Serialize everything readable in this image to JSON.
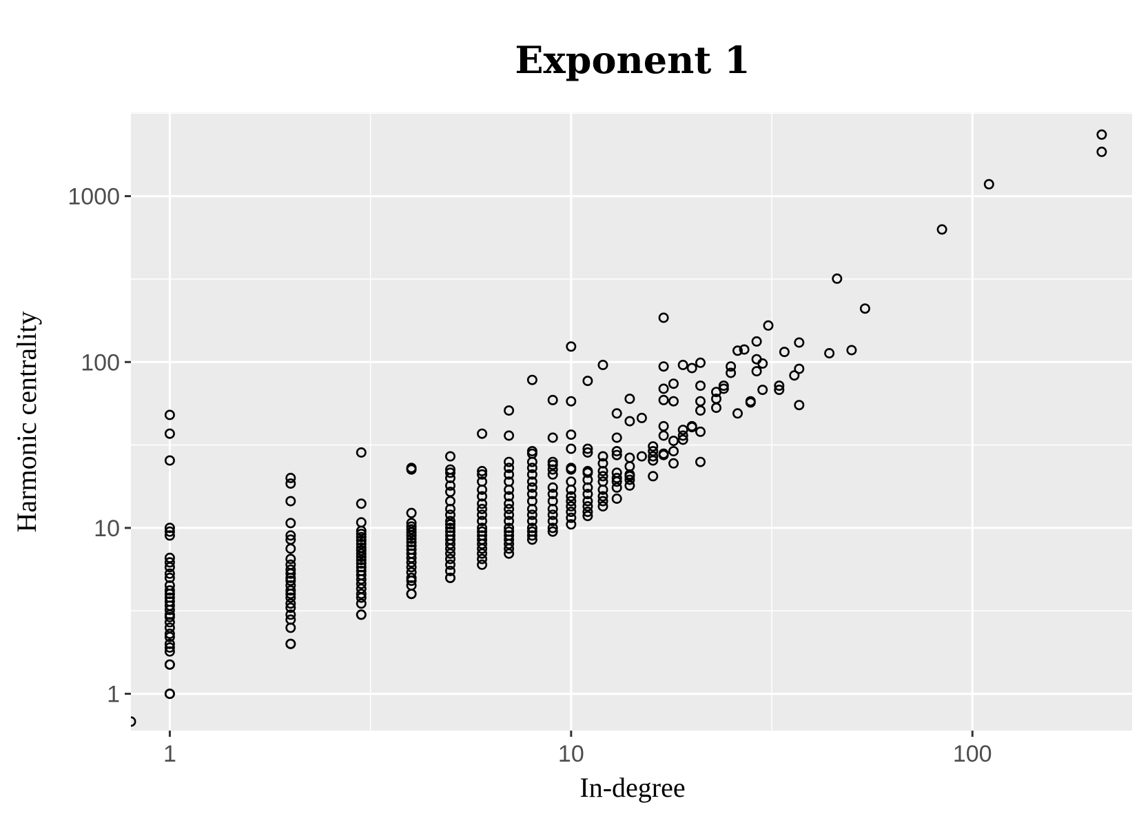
{
  "chart_data": {
    "type": "scatter",
    "title": "Exponent 1",
    "xlabel": "In-degree",
    "ylabel": "Harmonic centrality",
    "x_scale": "log10",
    "y_scale": "log10",
    "xlim": [
      0.8,
      250
    ],
    "ylim": [
      0.6,
      3200
    ],
    "x_ticks": [
      1,
      10,
      100
    ],
    "x_tick_labels": [
      "1",
      "10",
      "100"
    ],
    "y_ticks": [
      1,
      10,
      100,
      1000
    ],
    "y_tick_labels": [
      "1",
      "10",
      "100",
      "1000"
    ],
    "grid": true,
    "panel_color": "#ebebeb",
    "point_color": "#000000",
    "marker": "open-circle",
    "points": [
      [
        0.8,
        0.68
      ],
      [
        1,
        1
      ],
      [
        1,
        1
      ],
      [
        1,
        1.5
      ],
      [
        1,
        1.5
      ],
      [
        1,
        1.8
      ],
      [
        1,
        1.9
      ],
      [
        1,
        2.0
      ],
      [
        1,
        2.2
      ],
      [
        1,
        2.3
      ],
      [
        1,
        2.5
      ],
      [
        1,
        2.7
      ],
      [
        1,
        2.9
      ],
      [
        1,
        3.0
      ],
      [
        1,
        3.2
      ],
      [
        1,
        3.4
      ],
      [
        1,
        3.6
      ],
      [
        1,
        3.8
      ],
      [
        1,
        4.0
      ],
      [
        1,
        4.2
      ],
      [
        1,
        4.5
      ],
      [
        1,
        5.0
      ],
      [
        1,
        5.3
      ],
      [
        1,
        5.8
      ],
      [
        1,
        6.2
      ],
      [
        1,
        6.6
      ],
      [
        1,
        9.0
      ],
      [
        1,
        9.5
      ],
      [
        1,
        10.0
      ],
      [
        1,
        25.5
      ],
      [
        1,
        37
      ],
      [
        1,
        48
      ],
      [
        2,
        2
      ],
      [
        2,
        2
      ],
      [
        2,
        2.5
      ],
      [
        2,
        2.8
      ],
      [
        2,
        3.0
      ],
      [
        2,
        3.3
      ],
      [
        2,
        3.5
      ],
      [
        2,
        3.8
      ],
      [
        2,
        4.0
      ],
      [
        2,
        4.2
      ],
      [
        2,
        4.5
      ],
      [
        2,
        4.8
      ],
      [
        2,
        5.0
      ],
      [
        2,
        5.3
      ],
      [
        2,
        5.6
      ],
      [
        2,
        6.0
      ],
      [
        2,
        6.5
      ],
      [
        2,
        7.5
      ],
      [
        2,
        8.5
      ],
      [
        2,
        9.0
      ],
      [
        2,
        10.7
      ],
      [
        2,
        14.5
      ],
      [
        2,
        18.5
      ],
      [
        2,
        20
      ],
      [
        3,
        3
      ],
      [
        3,
        3
      ],
      [
        3,
        3.5
      ],
      [
        3,
        3.8
      ],
      [
        3,
        4.0
      ],
      [
        3,
        4.3
      ],
      [
        3,
        4.6
      ],
      [
        3,
        4.9
      ],
      [
        3,
        5.2
      ],
      [
        3,
        5.5
      ],
      [
        3,
        5.8
      ],
      [
        3,
        6.1
      ],
      [
        3,
        6.4
      ],
      [
        3,
        6.7
      ],
      [
        3,
        7.0
      ],
      [
        3,
        7.3
      ],
      [
        3,
        7.6
      ],
      [
        3,
        8.0
      ],
      [
        3,
        8.4
      ],
      [
        3,
        8.8
      ],
      [
        3,
        9.2
      ],
      [
        3,
        9.6
      ],
      [
        3,
        10.8
      ],
      [
        3,
        14
      ],
      [
        3,
        28.5
      ],
      [
        4,
        4
      ],
      [
        4,
        4
      ],
      [
        4,
        4.5
      ],
      [
        4,
        4.8
      ],
      [
        4,
        5.0
      ],
      [
        4,
        5.4
      ],
      [
        4,
        5.8
      ],
      [
        4,
        6.2
      ],
      [
        4,
        6.6
      ],
      [
        4,
        7.0
      ],
      [
        4,
        7.4
      ],
      [
        4,
        7.8
      ],
      [
        4,
        8.2
      ],
      [
        4,
        8.6
      ],
      [
        4,
        9.0
      ],
      [
        4,
        9.4
      ],
      [
        4,
        9.8
      ],
      [
        4,
        10.2
      ],
      [
        4,
        10.7
      ],
      [
        4,
        12.3
      ],
      [
        4,
        22.5
      ],
      [
        4,
        23
      ],
      [
        5,
        5
      ],
      [
        5,
        5
      ],
      [
        5,
        5.5
      ],
      [
        5,
        6.0
      ],
      [
        5,
        6.5
      ],
      [
        5,
        7.0
      ],
      [
        5,
        7.5
      ],
      [
        5,
        8.0
      ],
      [
        5,
        8.5
      ],
      [
        5,
        9.0
      ],
      [
        5,
        9.5
      ],
      [
        5,
        10.0
      ],
      [
        5,
        10.5
      ],
      [
        5,
        11
      ],
      [
        5,
        12
      ],
      [
        5,
        13
      ],
      [
        5,
        14.5
      ],
      [
        5,
        16.5
      ],
      [
        5,
        18
      ],
      [
        5,
        20
      ],
      [
        5,
        21.5
      ],
      [
        5,
        22.5
      ],
      [
        5,
        27
      ],
      [
        6,
        6
      ],
      [
        6,
        6.5
      ],
      [
        6,
        7
      ],
      [
        6,
        7.5
      ],
      [
        6,
        8
      ],
      [
        6,
        8.5
      ],
      [
        6,
        9
      ],
      [
        6,
        9.5
      ],
      [
        6,
        10
      ],
      [
        6,
        11
      ],
      [
        6,
        12
      ],
      [
        6,
        13
      ],
      [
        6,
        14
      ],
      [
        6,
        15.5
      ],
      [
        6,
        17
      ],
      [
        6,
        19
      ],
      [
        6,
        21
      ],
      [
        6,
        22
      ],
      [
        6,
        37
      ],
      [
        7,
        7
      ],
      [
        7,
        7.5
      ],
      [
        7,
        8
      ],
      [
        7,
        8.5
      ],
      [
        7,
        9
      ],
      [
        7,
        9.5
      ],
      [
        7,
        10
      ],
      [
        7,
        11
      ],
      [
        7,
        12
      ],
      [
        7,
        13
      ],
      [
        7,
        14
      ],
      [
        7,
        15.5
      ],
      [
        7,
        17
      ],
      [
        7,
        19
      ],
      [
        7,
        21
      ],
      [
        7,
        23
      ],
      [
        7,
        25
      ],
      [
        7,
        36
      ],
      [
        7,
        51
      ],
      [
        8,
        8.5
      ],
      [
        8,
        9
      ],
      [
        8,
        9.5
      ],
      [
        8,
        10
      ],
      [
        8,
        11
      ],
      [
        8,
        12
      ],
      [
        8,
        13
      ],
      [
        8,
        14.5
      ],
      [
        8,
        16
      ],
      [
        8,
        17.5
      ],
      [
        8,
        19
      ],
      [
        8,
        21
      ],
      [
        8,
        23
      ],
      [
        8,
        25
      ],
      [
        8,
        28
      ],
      [
        8,
        29
      ],
      [
        8,
        78
      ],
      [
        9,
        9.5
      ],
      [
        9,
        10
      ],
      [
        9,
        11
      ],
      [
        9,
        12
      ],
      [
        9,
        13
      ],
      [
        9,
        14.5
      ],
      [
        9,
        16
      ],
      [
        9,
        17.5
      ],
      [
        9,
        21
      ],
      [
        9,
        22.5
      ],
      [
        9,
        24
      ],
      [
        9,
        25
      ],
      [
        9,
        35
      ],
      [
        9,
        59
      ],
      [
        10,
        10.5
      ],
      [
        10,
        11.5
      ],
      [
        10,
        12.5
      ],
      [
        10,
        13.5
      ],
      [
        10,
        14.5
      ],
      [
        10,
        15.5
      ],
      [
        10,
        17
      ],
      [
        10,
        19
      ],
      [
        10,
        22.5
      ],
      [
        10,
        23
      ],
      [
        10,
        30
      ],
      [
        10,
        36.5
      ],
      [
        10,
        58
      ],
      [
        10,
        124
      ],
      [
        11,
        11.8
      ],
      [
        11,
        12.5
      ],
      [
        11,
        13.5
      ],
      [
        11,
        14.5
      ],
      [
        11,
        16
      ],
      [
        11,
        17.5
      ],
      [
        11,
        19.5
      ],
      [
        11,
        21.5
      ],
      [
        11,
        22
      ],
      [
        11,
        28.5
      ],
      [
        11,
        30
      ],
      [
        11,
        77
      ],
      [
        12,
        13.5
      ],
      [
        12,
        14.5
      ],
      [
        12,
        15.5
      ],
      [
        12,
        17
      ],
      [
        12,
        19
      ],
      [
        12,
        20.5
      ],
      [
        12,
        22
      ],
      [
        12,
        24.5
      ],
      [
        12,
        27
      ],
      [
        12,
        96
      ],
      [
        13,
        15
      ],
      [
        13,
        17.5
      ],
      [
        13,
        19
      ],
      [
        13,
        20
      ],
      [
        13,
        21.5
      ],
      [
        13,
        27.5
      ],
      [
        13,
        29
      ],
      [
        13,
        35
      ],
      [
        13,
        49
      ],
      [
        14,
        18
      ],
      [
        14,
        19.5
      ],
      [
        14,
        20.5
      ],
      [
        14,
        21
      ],
      [
        14,
        23.5
      ],
      [
        14,
        26.5
      ],
      [
        14,
        44
      ],
      [
        14,
        60
      ],
      [
        15,
        27
      ],
      [
        15,
        46
      ],
      [
        16,
        20.5
      ],
      [
        16,
        25.5
      ],
      [
        16,
        27
      ],
      [
        16,
        29
      ],
      [
        16,
        31
      ],
      [
        17,
        27.5
      ],
      [
        17,
        28
      ],
      [
        17,
        36
      ],
      [
        17,
        41
      ],
      [
        17,
        59
      ],
      [
        17,
        69
      ],
      [
        17,
        94
      ],
      [
        17,
        185
      ],
      [
        18,
        24.5
      ],
      [
        18,
        29
      ],
      [
        18,
        33.5
      ],
      [
        18,
        58
      ],
      [
        18,
        74
      ],
      [
        19,
        34
      ],
      [
        19,
        36
      ],
      [
        19,
        39
      ],
      [
        19,
        96
      ],
      [
        20,
        40.5
      ],
      [
        20,
        41
      ],
      [
        20,
        92
      ],
      [
        21,
        25
      ],
      [
        21,
        38
      ],
      [
        21,
        51
      ],
      [
        21,
        58
      ],
      [
        21,
        72
      ],
      [
        21,
        99
      ],
      [
        23,
        53
      ],
      [
        23,
        60
      ],
      [
        23,
        66
      ],
      [
        24,
        69
      ],
      [
        24,
        72
      ],
      [
        25,
        86
      ],
      [
        25,
        94
      ],
      [
        26,
        49
      ],
      [
        26,
        117
      ],
      [
        27,
        119
      ],
      [
        28,
        57
      ],
      [
        28,
        58
      ],
      [
        29,
        88
      ],
      [
        29,
        104
      ],
      [
        29,
        133
      ],
      [
        30,
        68
      ],
      [
        30,
        98
      ],
      [
        31,
        166
      ],
      [
        33,
        68
      ],
      [
        33,
        72
      ],
      [
        34,
        115
      ],
      [
        36,
        83
      ],
      [
        37,
        55
      ],
      [
        37,
        91
      ],
      [
        37,
        131
      ],
      [
        44,
        113
      ],
      [
        46,
        318
      ],
      [
        50,
        118
      ],
      [
        54,
        210
      ],
      [
        84,
        630
      ],
      [
        110,
        1180
      ],
      [
        210,
        1850
      ],
      [
        210,
        2350
      ]
    ]
  }
}
